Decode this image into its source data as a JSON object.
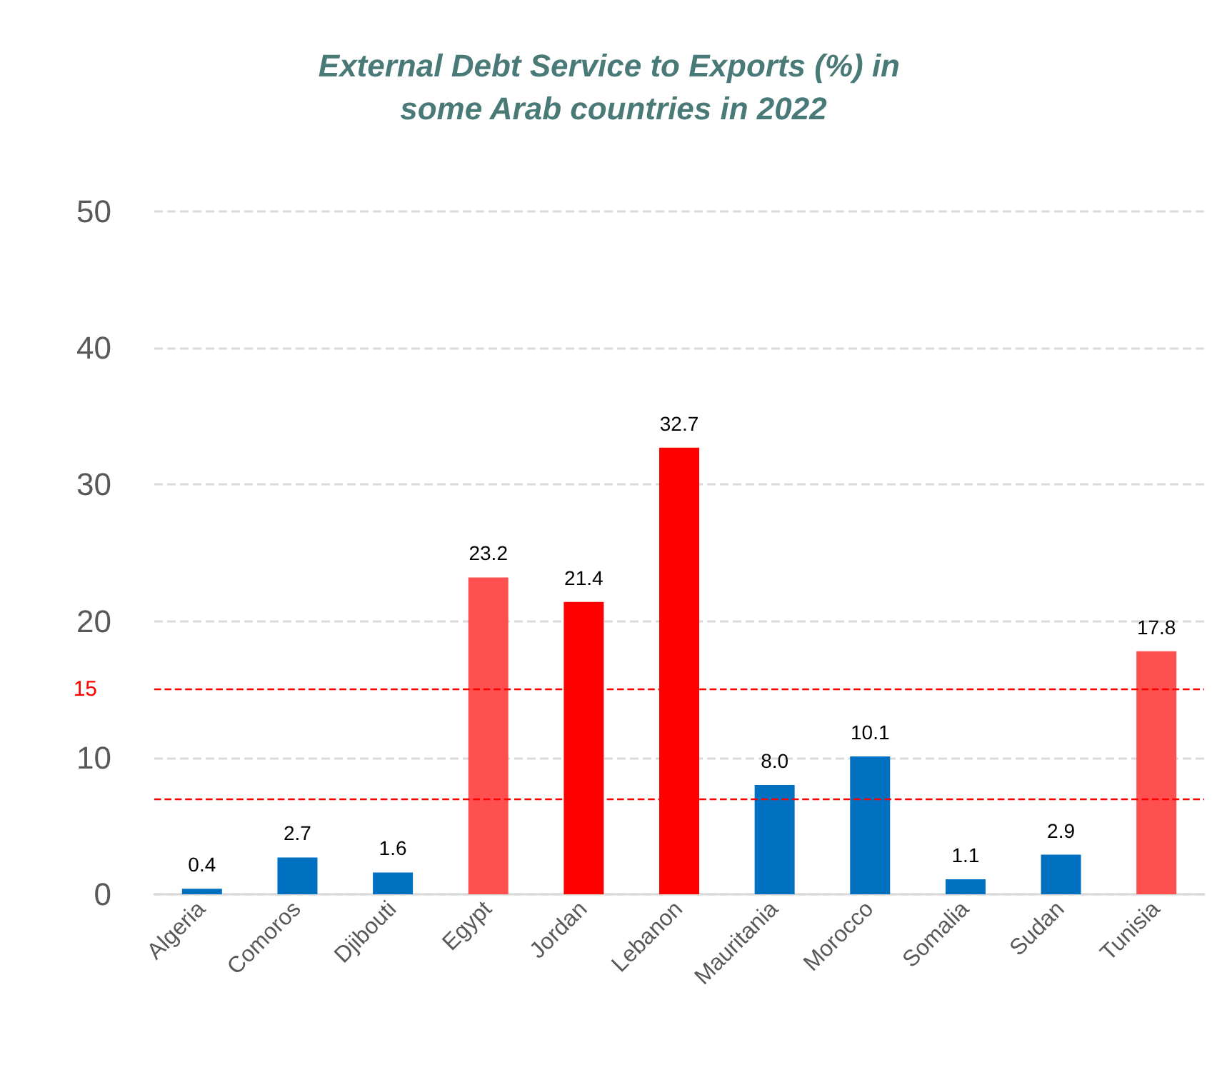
{
  "chart_data": {
    "type": "bar",
    "title": "External Debt Service to Exports (%) in some Arab countries in 2022",
    "categories": [
      "Algeria",
      "Comoros",
      "Djibouti",
      "Egypt",
      "Jordan",
      "Lebanon",
      "Mauritania",
      "Morocco",
      "Somalia",
      "Sudan",
      "Tunisia"
    ],
    "values": [
      0.4,
      2.7,
      1.6,
      23.2,
      21.4,
      32.7,
      8.0,
      10.1,
      1.1,
      2.9,
      17.8
    ],
    "colors": [
      "#0070c0",
      "#0070c0",
      "#0070c0",
      "#ff5050",
      "#ff0000",
      "#ff0000",
      "#0070c0",
      "#0070c0",
      "#0070c0",
      "#0070c0",
      "#ff5050"
    ],
    "value_labels": [
      "0.4",
      "2.7",
      "1.6",
      "23.2",
      "21.4",
      "32.7",
      "8.0",
      "10.1",
      "1.1",
      "2.9",
      "17.8"
    ],
    "ylim": [
      0,
      50
    ],
    "yticks": [
      0,
      10,
      20,
      30,
      40,
      50
    ],
    "grid": "y",
    "ref_lines": [
      {
        "axis": "y",
        "value": 15,
        "label": "15",
        "color": "#ff0000",
        "line_style": "dashed"
      },
      {
        "axis": "y",
        "value": 7,
        "label": null,
        "color": "#ff0000",
        "line_style": "dashed"
      }
    ]
  }
}
